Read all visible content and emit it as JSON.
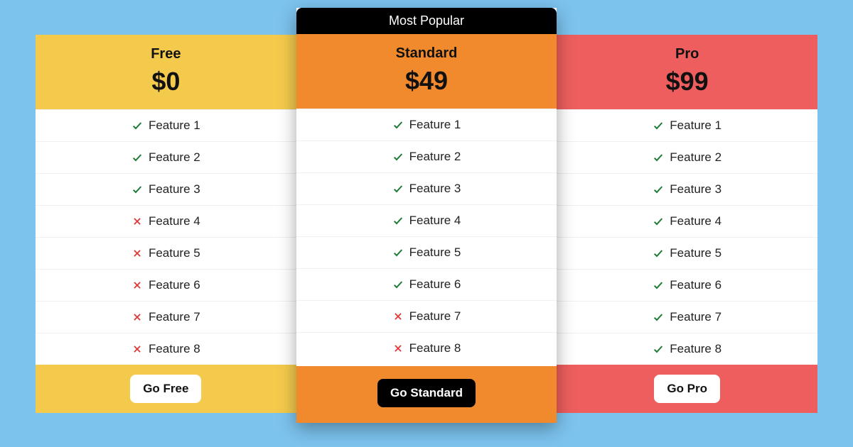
{
  "background_color": "#7cc3ee",
  "check_color": "#1e7b34",
  "cross_color": "#e03535",
  "row_border_color": "#f0f0f0",
  "popular_badge": {
    "label": "Most Popular",
    "bg": "#000000",
    "fg": "#ffffff"
  },
  "plans": [
    {
      "id": "free",
      "name": "Free",
      "price": "$0",
      "header_bg": "#f4ca4c",
      "footer_bg": "#f4ca4c",
      "popular": false,
      "cta": {
        "label": "Go Free",
        "bg": "#ffffff",
        "fg": "#111111"
      },
      "features": [
        {
          "label": "Feature 1",
          "included": true
        },
        {
          "label": "Feature 2",
          "included": true
        },
        {
          "label": "Feature 3",
          "included": true
        },
        {
          "label": "Feature 4",
          "included": false
        },
        {
          "label": "Feature 5",
          "included": false
        },
        {
          "label": "Feature 6",
          "included": false
        },
        {
          "label": "Feature 7",
          "included": false
        },
        {
          "label": "Feature 8",
          "included": false
        }
      ]
    },
    {
      "id": "standard",
      "name": "Standard",
      "price": "$49",
      "header_bg": "#f08a2c",
      "footer_bg": "#f08a2c",
      "popular": true,
      "cta": {
        "label": "Go Standard",
        "bg": "#000000",
        "fg": "#ffffff"
      },
      "features": [
        {
          "label": "Feature 1",
          "included": true
        },
        {
          "label": "Feature 2",
          "included": true
        },
        {
          "label": "Feature 3",
          "included": true
        },
        {
          "label": "Feature 4",
          "included": true
        },
        {
          "label": "Feature 5",
          "included": true
        },
        {
          "label": "Feature 6",
          "included": true
        },
        {
          "label": "Feature 7",
          "included": false
        },
        {
          "label": "Feature 8",
          "included": false
        }
      ]
    },
    {
      "id": "pro",
      "name": "Pro",
      "price": "$99",
      "header_bg": "#ee5e5e",
      "footer_bg": "#ee5e5e",
      "popular": false,
      "cta": {
        "label": "Go Pro",
        "bg": "#ffffff",
        "fg": "#111111"
      },
      "features": [
        {
          "label": "Feature 1",
          "included": true
        },
        {
          "label": "Feature 2",
          "included": true
        },
        {
          "label": "Feature 3",
          "included": true
        },
        {
          "label": "Feature 4",
          "included": true
        },
        {
          "label": "Feature 5",
          "included": true
        },
        {
          "label": "Feature 6",
          "included": true
        },
        {
          "label": "Feature 7",
          "included": true
        },
        {
          "label": "Feature 8",
          "included": true
        }
      ]
    }
  ]
}
